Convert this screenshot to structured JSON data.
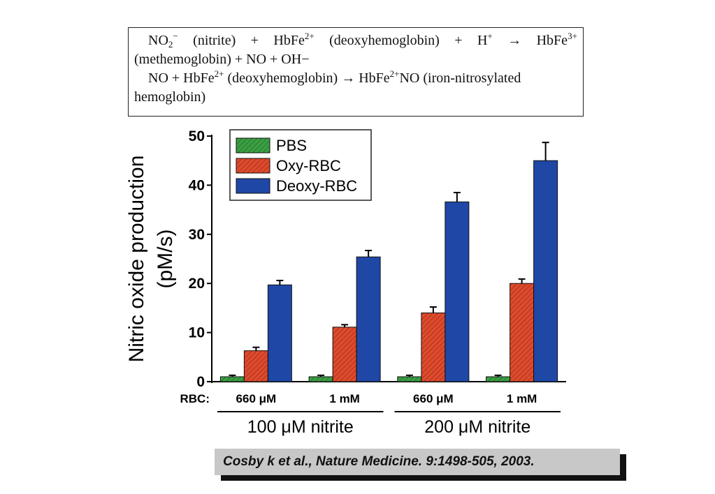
{
  "equations": {
    "eq1_line1_parts": [
      "NO",
      "2",
      "−",
      "(nitrite)",
      "+",
      "HbFe",
      "2+",
      "(deoxyhemoglobin)",
      "+",
      "H",
      "+",
      "→",
      "HbFe",
      "3+"
    ],
    "eq1_line2": "(methemoglobin) + NO + OH−",
    "eq2_line1_a": "NO + HbFe",
    "eq2_line1_sup1": "2+",
    "eq2_line1_b": " (deoxyhemoglobin) → HbFe",
    "eq2_line1_sup2": "2+",
    "eq2_line1_c": "NO (iron-nitrosylated",
    "eq2_line2": "hemoglobin)"
  },
  "chart_data": {
    "type": "bar",
    "ylabel_line1": "Nitric oxide production",
    "ylabel_line2": "(pM/s)",
    "ylim": [
      0,
      50
    ],
    "yticks": [
      "0",
      "10",
      "20",
      "30",
      "40",
      "50"
    ],
    "row_label": "RBC:",
    "categories": [
      "660 μM",
      "1 mM",
      "660 μM",
      "1 mM"
    ],
    "groups": [
      "100 μM nitrite",
      "200 μM nitrite"
    ],
    "legend_position": "top-left",
    "series": [
      {
        "name": "PBS",
        "values": [
          1.0,
          1.0,
          1.0,
          1.0
        ],
        "errors": [
          0.3,
          0.3,
          0.3,
          0.3
        ],
        "color": "#3aa043",
        "hatched": true
      },
      {
        "name": "Oxy-RBC",
        "values": [
          6.3,
          11.1,
          14.0,
          20.0
        ],
        "errors": [
          0.7,
          0.5,
          1.2,
          0.9
        ],
        "color": "#e04a2c",
        "hatched": true
      },
      {
        "name": "Deoxy-RBC",
        "values": [
          19.7,
          25.4,
          36.6,
          45.0
        ],
        "errors": [
          0.9,
          1.3,
          1.9,
          3.7
        ],
        "color": "#1f47a6",
        "hatched": false
      }
    ]
  },
  "citation": "Cosby k et al., Nature Medicine. 9:1498-505, 2003."
}
